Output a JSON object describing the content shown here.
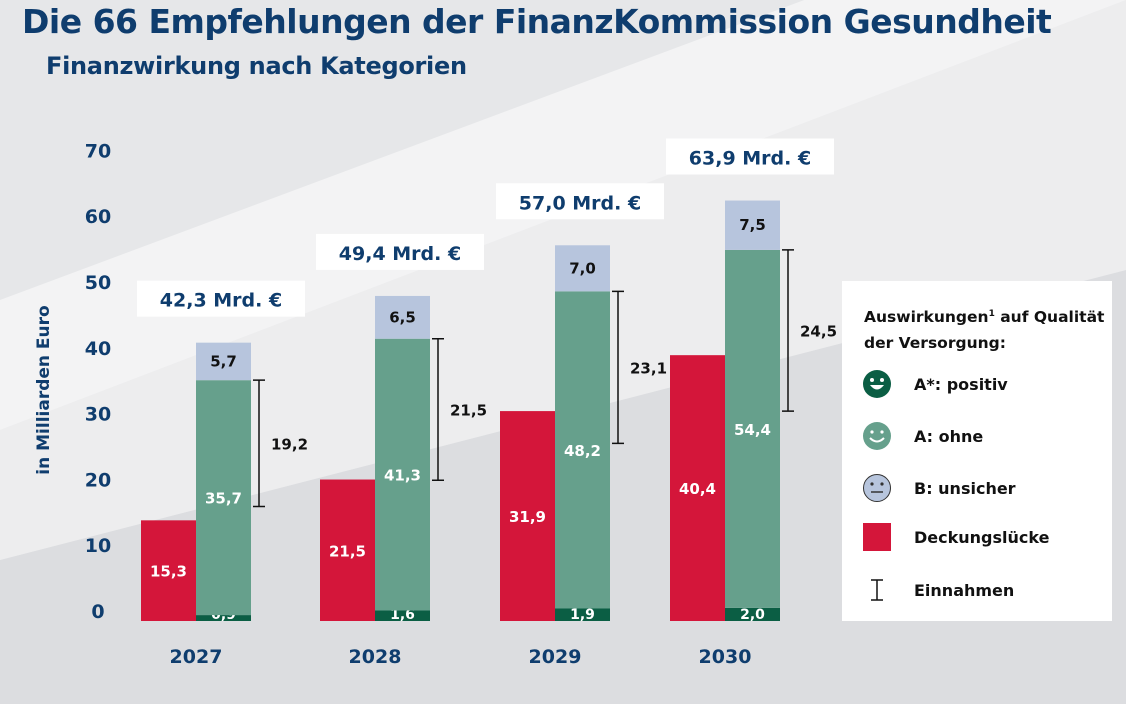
{
  "title": "Die 66 Empfehlungen der FinanzKommission Gesundheit",
  "subtitle": "Finanzwirkung nach Kategorien",
  "colors": {
    "title": "#0f3d6e",
    "deckungsluecke": "#d4163a",
    "a_ohne": "#66a08c",
    "a_positiv": "#0b5e44",
    "b_unsicher": "#b7c5dd"
  },
  "chart_data": {
    "type": "bar",
    "ylabel": "in Milliarden Euro",
    "ylim": [
      0,
      70
    ],
    "yticks": [
      "0",
      "10",
      "20",
      "30",
      "40",
      "50",
      "60",
      "70"
    ],
    "categories": [
      "2027",
      "2028",
      "2029",
      "2030"
    ],
    "series": [
      {
        "name": "Deckungslücke",
        "values": [
          "15,3",
          "21,5",
          "31,9",
          "40,4"
        ]
      },
      {
        "name": "A*: positiv",
        "values": [
          "0,9",
          "1,6",
          "1,9",
          "2,0"
        ]
      },
      {
        "name": "A: ohne",
        "values": [
          "35,7",
          "41,3",
          "48,2",
          "54,4"
        ]
      },
      {
        "name": "B: unsicher",
        "values": [
          "5,7",
          "6,5",
          "7,0",
          "7,5"
        ]
      },
      {
        "name": "Einnahmen",
        "values": [
          "19,2",
          "21,5",
          "23,1",
          "24,5"
        ]
      }
    ],
    "totals": [
      "42,3 Mrd. €",
      "49,4 Mrd. €",
      "57,0 Mrd. €",
      "63,9 Mrd. €"
    ],
    "grid": false,
    "legend_position": "right"
  },
  "legend": {
    "title": "Auswirkungen",
    "title_sup": "1",
    "title_rest": " auf Qualität der Versorgung:",
    "items": [
      {
        "label": "A*: positiv",
        "icon": "smiley-happy-icon"
      },
      {
        "label": "A: ohne",
        "icon": "smiley-smile-icon"
      },
      {
        "label": "B: unsicher",
        "icon": "smiley-neutral-icon"
      },
      {
        "label": "Deckungslücke",
        "icon": "red-square-icon"
      },
      {
        "label": "Einnahmen",
        "icon": "range-bracket-icon"
      }
    ]
  }
}
